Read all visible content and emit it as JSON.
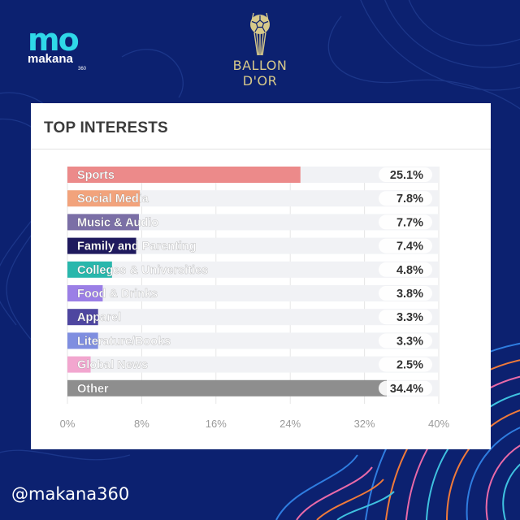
{
  "brand": {
    "logo_mark": "mo",
    "logo_word": "makana",
    "logo_sub": "360",
    "ballon_line1": "BALLON",
    "ballon_line2": "D'OR",
    "handle": "@makana360"
  },
  "colors": {
    "background": "#0c2170",
    "accent_cyan": "#2fd8e8",
    "gold": "#d7c98a"
  },
  "chart_data": {
    "type": "bar",
    "orientation": "horizontal",
    "title": "TOP INTERESTS",
    "categories": [
      "Sports",
      "Social Media",
      "Music & Audio",
      "Family and Parenting",
      "Colleges & Universities",
      "Food & Drinks",
      "Apparel",
      "Literature/Books",
      "Global News",
      "Other"
    ],
    "values": [
      25.1,
      7.8,
      7.7,
      7.4,
      4.8,
      3.8,
      3.3,
      3.3,
      2.5,
      34.4
    ],
    "value_labels": [
      "25.1%",
      "7.8%",
      "7.7%",
      "7.4%",
      "4.8%",
      "3.8%",
      "3.3%",
      "3.3%",
      "2.5%",
      "34.4%"
    ],
    "bar_colors": [
      "#ec8a8a",
      "#f2a37c",
      "#7b6fa6",
      "#1f1a5e",
      "#29b7ac",
      "#9b7fe6",
      "#4e46a0",
      "#7f8ee0",
      "#f2a6cf",
      "#8e8e8e"
    ],
    "xlim": [
      0,
      40
    ],
    "x_ticks": [
      "0%",
      "8%",
      "16%",
      "24%",
      "32%",
      "40%"
    ],
    "x_tick_values": [
      0,
      8,
      16,
      24,
      32,
      40
    ],
    "grid": true
  }
}
